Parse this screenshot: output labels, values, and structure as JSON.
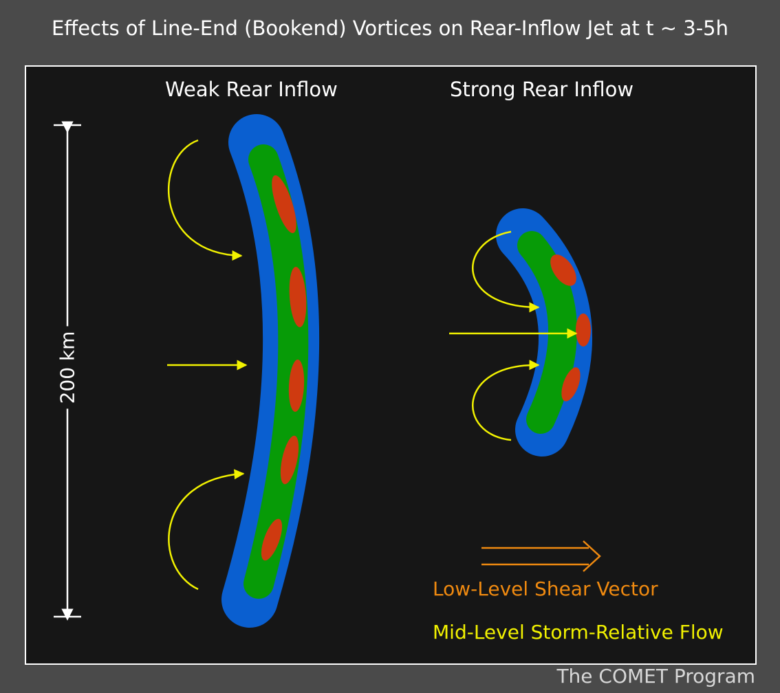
{
  "title": "Effects of Line-End (Bookend) Vortices on Rear-Inflow Jet at t ~ 3-5h",
  "panels": {
    "weak_label": "Weak Rear Inflow",
    "strong_label": "Strong Rear Inflow"
  },
  "scale": {
    "label": "200 km"
  },
  "legend": {
    "shear_label": "Low-Level Shear Vector",
    "flow_label": "Mid-Level Storm-Relative Flow"
  },
  "credit": "The COMET Program",
  "colors": {
    "background": "#4a4a4a",
    "panel": "#161616",
    "outer_band": "#0a5fd0",
    "middle_band": "#079b07",
    "core": "#cf3a10",
    "flow_arrow": "#f2f200",
    "shear_arrow": "#f08a10"
  }
}
